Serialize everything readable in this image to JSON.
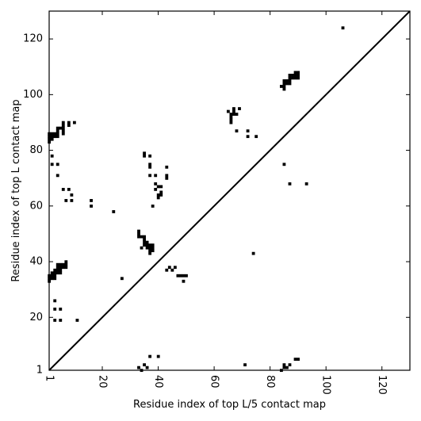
{
  "chart_data": {
    "type": "heatmap",
    "title": "",
    "xlabel": "Residue index of top L/5 contact map",
    "ylabel": "Residue index of top L contact map",
    "xlim": [
      1,
      130
    ],
    "ylim": [
      1,
      130
    ],
    "xticks": [
      1,
      20,
      40,
      60,
      80,
      100,
      120
    ],
    "yticks": [
      1,
      20,
      40,
      60,
      80,
      100,
      120
    ],
    "xtick_labels": [
      "1",
      "20",
      "40",
      "60",
      "80",
      "100",
      "120"
    ],
    "ytick_labels": [
      "1",
      "20",
      "40",
      "60",
      "80",
      "100",
      "120"
    ],
    "xtick_rotation": -90,
    "grid": false,
    "diagonal": true,
    "cell_color": "#000000",
    "line_color": "#000000",
    "upper_triangle_points": [
      [
        1,
        83
      ],
      [
        1,
        84
      ],
      [
        1,
        85
      ],
      [
        1,
        86
      ],
      [
        2,
        84
      ],
      [
        2,
        85
      ],
      [
        2,
        86
      ],
      [
        3,
        85
      ],
      [
        3,
        86
      ],
      [
        4,
        85
      ],
      [
        4,
        86
      ],
      [
        4,
        87
      ],
      [
        4,
        88
      ],
      [
        5,
        88
      ],
      [
        6,
        88
      ],
      [
        6,
        86
      ],
      [
        6,
        87
      ],
      [
        6,
        89
      ],
      [
        6,
        90
      ],
      [
        8,
        89
      ],
      [
        8,
        90
      ],
      [
        10,
        90
      ],
      [
        2,
        75
      ],
      [
        2,
        78
      ],
      [
        4,
        71
      ],
      [
        4,
        75
      ],
      [
        6,
        66
      ],
      [
        7,
        62
      ],
      [
        8,
        66
      ],
      [
        9,
        62
      ],
      [
        9,
        64
      ],
      [
        16,
        60
      ],
      [
        16,
        62
      ],
      [
        24,
        58
      ],
      [
        35,
        78
      ],
      [
        35,
        79
      ],
      [
        37,
        74
      ],
      [
        37,
        75
      ],
      [
        37,
        78
      ],
      [
        37,
        71
      ],
      [
        39,
        71
      ],
      [
        39,
        68
      ],
      [
        39,
        66
      ],
      [
        38,
        60
      ],
      [
        40,
        63
      ],
      [
        40,
        64
      ],
      [
        41,
        64
      ],
      [
        41,
        65
      ],
      [
        40,
        67
      ],
      [
        41,
        67
      ],
      [
        43,
        70
      ],
      [
        43,
        71
      ],
      [
        43,
        74
      ],
      [
        65,
        94
      ],
      [
        66,
        90
      ],
      [
        66,
        91
      ],
      [
        66,
        92
      ],
      [
        66,
        93
      ],
      [
        67,
        93
      ],
      [
        67,
        94
      ],
      [
        67,
        95
      ],
      [
        68,
        93
      ],
      [
        69,
        95
      ],
      [
        68,
        87
      ],
      [
        72,
        85
      ],
      [
        72,
        87
      ],
      [
        75,
        85
      ],
      [
        84,
        103
      ],
      [
        85,
        102
      ],
      [
        85,
        103
      ],
      [
        85,
        104
      ],
      [
        85,
        105
      ],
      [
        86,
        104
      ],
      [
        86,
        105
      ],
      [
        87,
        104
      ],
      [
        87,
        105
      ],
      [
        87,
        106
      ],
      [
        87,
        107
      ],
      [
        88,
        106
      ],
      [
        88,
        107
      ],
      [
        89,
        106
      ],
      [
        89,
        107
      ],
      [
        89,
        108
      ],
      [
        90,
        106
      ],
      [
        90,
        107
      ],
      [
        90,
        108
      ],
      [
        85,
        75
      ],
      [
        87,
        68
      ],
      [
        93,
        68
      ],
      [
        106,
        124
      ]
    ],
    "lower_triangle_points": [
      [
        1,
        33
      ],
      [
        1,
        34
      ],
      [
        1,
        35
      ],
      [
        2,
        34
      ],
      [
        2,
        35
      ],
      [
        2,
        36
      ],
      [
        3,
        34
      ],
      [
        3,
        35
      ],
      [
        3,
        36
      ],
      [
        3,
        37
      ],
      [
        4,
        36
      ],
      [
        4,
        37
      ],
      [
        4,
        38
      ],
      [
        4,
        39
      ],
      [
        5,
        36
      ],
      [
        5,
        37
      ],
      [
        5,
        38
      ],
      [
        5,
        39
      ],
      [
        6,
        38
      ],
      [
        6,
        39
      ],
      [
        7,
        38
      ],
      [
        7,
        39
      ],
      [
        7,
        40
      ],
      [
        3,
        19
      ],
      [
        3,
        23
      ],
      [
        3,
        26
      ],
      [
        5,
        19
      ],
      [
        5,
        23
      ],
      [
        11,
        19
      ],
      [
        27,
        34
      ],
      [
        33,
        49
      ],
      [
        33,
        50
      ],
      [
        33,
        51
      ],
      [
        34,
        49
      ],
      [
        35,
        46
      ],
      [
        35,
        47
      ],
      [
        35,
        48
      ],
      [
        35,
        49
      ],
      [
        36,
        45
      ],
      [
        36,
        46
      ],
      [
        36,
        47
      ],
      [
        37,
        43
      ],
      [
        37,
        44
      ],
      [
        37,
        45
      ],
      [
        37,
        46
      ],
      [
        38,
        44
      ],
      [
        38,
        45
      ],
      [
        38,
        46
      ],
      [
        34,
        45
      ],
      [
        43,
        37
      ],
      [
        44,
        38
      ],
      [
        45,
        37
      ],
      [
        46,
        38
      ],
      [
        47,
        35
      ],
      [
        48,
        35
      ],
      [
        49,
        33
      ],
      [
        49,
        35
      ],
      [
        50,
        35
      ],
      [
        33,
        2
      ],
      [
        34,
        1
      ],
      [
        35,
        3
      ],
      [
        36,
        2
      ],
      [
        37,
        6
      ],
      [
        40,
        6
      ],
      [
        71,
        3
      ],
      [
        74,
        43
      ],
      [
        84,
        1
      ],
      [
        85,
        2
      ],
      [
        85,
        3
      ],
      [
        86,
        2
      ],
      [
        87,
        3
      ],
      [
        89,
        5
      ],
      [
        90,
        5
      ]
    ]
  }
}
